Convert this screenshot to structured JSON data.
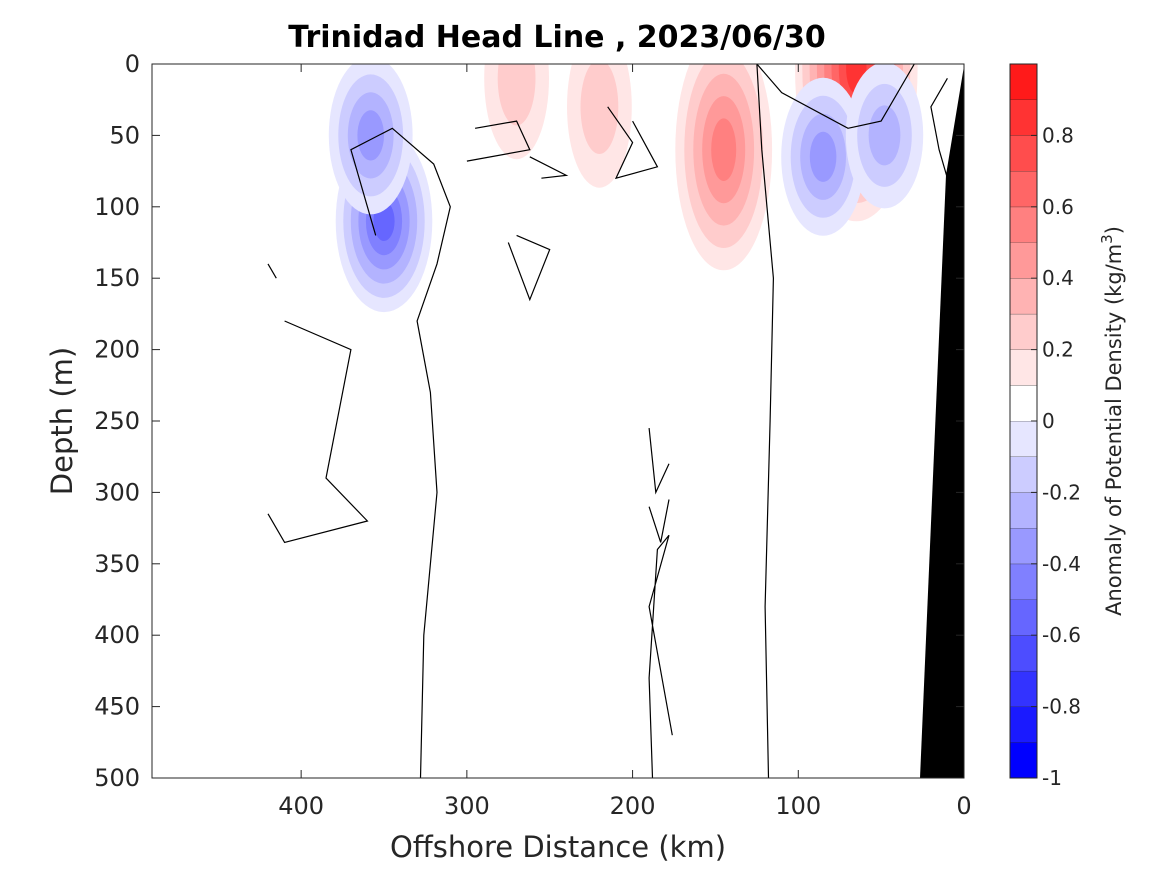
{
  "chart_data": {
    "type": "heatmap",
    "subtype": "filled-contour depth section",
    "title": "Trinidad Head Line , 2023/06/30",
    "xlabel": "Offshore Distance (km)",
    "ylabel": "Depth (m)",
    "xlim": [
      490,
      0
    ],
    "ylim": [
      500,
      0
    ],
    "x_direction": "reversed",
    "y_direction": "reversed (depth increases downward)",
    "x_ticks": [
      400,
      300,
      200,
      100,
      0
    ],
    "y_ticks": [
      0,
      50,
      100,
      150,
      200,
      250,
      300,
      350,
      400,
      450,
      500
    ],
    "grid": false,
    "colorbar": {
      "label": "Anomaly of Potential Density (kg/m",
      "label_superscript": "3",
      "label_suffix": ")",
      "range": [
        -1,
        1
      ],
      "levels": [
        -1,
        -0.9,
        -0.8,
        -0.7,
        -0.6,
        -0.5,
        -0.4,
        -0.3,
        -0.2,
        -0.1,
        0,
        0.1,
        0.2,
        0.3,
        0.4,
        0.5,
        0.6,
        0.7,
        0.8,
        0.9,
        1
      ],
      "tick_labels": [
        "-1",
        "-0.8",
        "-0.6",
        "-0.4",
        "-0.2",
        "0",
        "0.2",
        "0.4",
        "0.6",
        "0.8"
      ],
      "tick_values": [
        -1,
        -0.8,
        -0.6,
        -0.4,
        -0.2,
        0,
        0.2,
        0.4,
        0.6,
        0.8
      ],
      "colors": [
        "#0000ff",
        "#1a1aff",
        "#3333ff",
        "#4d4dff",
        "#6666ff",
        "#8080ff",
        "#9999ff",
        "#b3b3ff",
        "#ccccff",
        "#e6e6ff",
        "#ffffff",
        "#ffffff",
        "#ffe6e6",
        "#ffcccc",
        "#ffb3b3",
        "#ff9999",
        "#ff8080",
        "#ff6666",
        "#ff4d4d",
        "#ff3333",
        "#ff1a1a",
        "#ff0000"
      ],
      "placement": "right"
    },
    "features": [
      {
        "kind": "positive",
        "center_x": 65,
        "center_y": 3,
        "peak": 0.9
      },
      {
        "kind": "positive",
        "center_x": 145,
        "center_y": 60,
        "peak": 0.6
      },
      {
        "kind": "positive",
        "center_x": 270,
        "center_y": 10,
        "peak": 0.3
      },
      {
        "kind": "positive",
        "center_x": 220,
        "center_y": 30,
        "peak": 0.3
      },
      {
        "kind": "negative",
        "center_x": 350,
        "center_y": 110,
        "peak": -0.6
      },
      {
        "kind": "negative",
        "center_x": 358,
        "center_y": 50,
        "peak": -0.4
      },
      {
        "kind": "negative",
        "center_x": 85,
        "center_y": 65,
        "peak": -0.4
      },
      {
        "kind": "negative",
        "center_x": 48,
        "center_y": 50,
        "peak": -0.3
      }
    ],
    "bathymetry_color": "#000000",
    "zero_contour_color": "#000000"
  }
}
